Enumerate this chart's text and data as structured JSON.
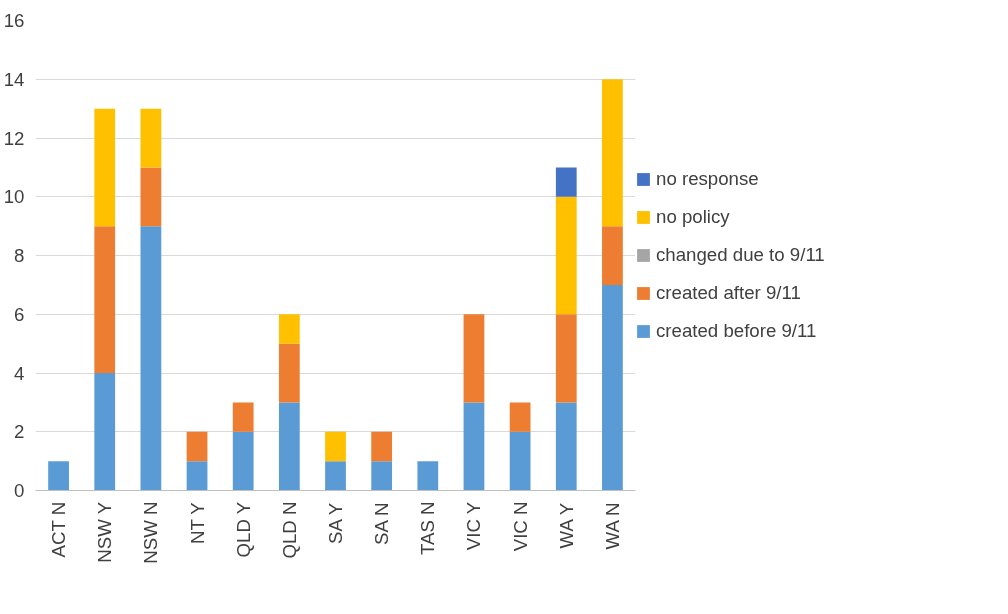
{
  "chart_data": {
    "type": "bar",
    "stacked": true,
    "categories": [
      "ACT N",
      "NSW Y",
      "NSW N",
      "NT Y",
      "QLD Y",
      "QLD N",
      "SA Y",
      "SA N",
      "TAS N",
      "VIC Y",
      "VIC N",
      "WA Y",
      "WA N"
    ],
    "series": [
      {
        "name": "created before 9/11",
        "color": "#5b9bd5",
        "values": [
          1,
          4,
          9,
          1,
          2,
          3,
          1,
          1,
          1,
          3,
          2,
          3,
          7
        ]
      },
      {
        "name": "created after 9/11",
        "color": "#ed7d31",
        "values": [
          0,
          5,
          2,
          1,
          1,
          2,
          0,
          1,
          0,
          3,
          1,
          3,
          2
        ]
      },
      {
        "name": "changed due to 9/11",
        "color": "#a5a5a5",
        "values": [
          0,
          0,
          0,
          0,
          0,
          0,
          0,
          0,
          0,
          0,
          0,
          0,
          0
        ]
      },
      {
        "name": "no policy",
        "color": "#ffc000",
        "values": [
          0,
          4,
          2,
          0,
          0,
          1,
          1,
          0,
          0,
          0,
          0,
          4,
          5
        ]
      },
      {
        "name": "no response",
        "color": "#4472c4",
        "values": [
          0,
          0,
          0,
          0,
          0,
          0,
          0,
          0,
          0,
          0,
          0,
          1,
          0
        ]
      }
    ],
    "ylim": [
      0,
      16
    ],
    "yticks": [
      0,
      2,
      4,
      6,
      8,
      10,
      12,
      14,
      16
    ],
    "grid": "y",
    "legend": "right"
  }
}
